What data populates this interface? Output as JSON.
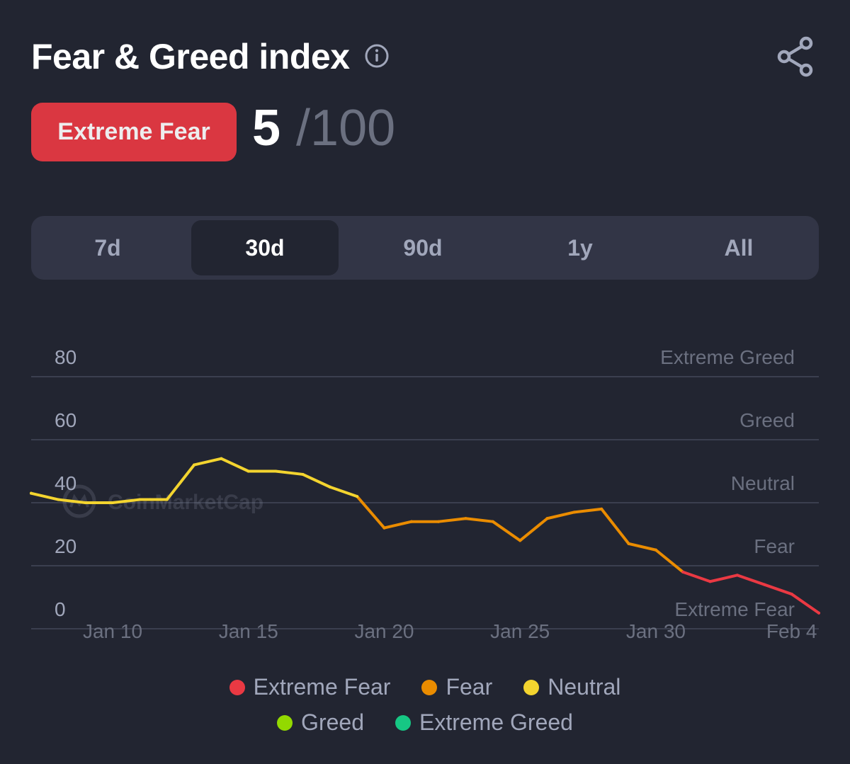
{
  "header": {
    "title": "Fear & Greed index",
    "info_icon": "info-icon",
    "share_icon": "share-icon"
  },
  "status": {
    "label": "Extreme Fear",
    "value": "5",
    "max": "/100",
    "color": "#ea3943"
  },
  "tabs": [
    {
      "label": "7d",
      "active": false
    },
    {
      "label": "30d",
      "active": true
    },
    {
      "label": "90d",
      "active": false
    },
    {
      "label": "1y",
      "active": false
    },
    {
      "label": "All",
      "active": false
    }
  ],
  "watermark": "CoinMarketCap",
  "chart_data": {
    "type": "line",
    "title": "",
    "xlabel": "",
    "ylabel": "",
    "ylim": [
      0,
      80
    ],
    "xlim": [
      "2026-01-07",
      "2026-02-05"
    ],
    "grid": true,
    "y_ticks": [
      "80",
      "60",
      "40",
      "20",
      "0"
    ],
    "zone_labels": [
      {
        "label": "Extreme Greed",
        "at": 80
      },
      {
        "label": "Greed",
        "at": 60
      },
      {
        "label": "Neutral",
        "at": 40
      },
      {
        "label": "Fear",
        "at": 20
      },
      {
        "label": "Extreme Fear",
        "at": 0
      }
    ],
    "x_ticks": [
      {
        "label": "Jan 10",
        "date": "2026-01-10"
      },
      {
        "label": "Jan 15",
        "date": "2026-01-15"
      },
      {
        "label": "Jan 20",
        "date": "2026-01-20"
      },
      {
        "label": "Jan 25",
        "date": "2026-01-25"
      },
      {
        "label": "Jan 30",
        "date": "2026-01-30"
      },
      {
        "label": "Feb 4",
        "date": "2026-02-04"
      }
    ],
    "series": [
      {
        "x": [
          "2026-01-07",
          "2026-01-08",
          "2026-01-09",
          "2026-01-10",
          "2026-01-11",
          "2026-01-12",
          "2026-01-13",
          "2026-01-14",
          "2026-01-15",
          "2026-01-16",
          "2026-01-17",
          "2026-01-18",
          "2026-01-19",
          "2026-01-20",
          "2026-01-21",
          "2026-01-22",
          "2026-01-23",
          "2026-01-24",
          "2026-01-25",
          "2026-01-26",
          "2026-01-27",
          "2026-01-28",
          "2026-01-29",
          "2026-01-30",
          "2026-01-31",
          "2026-02-01",
          "2026-02-02",
          "2026-02-03",
          "2026-02-04",
          "2026-02-05"
        ],
        "values": [
          43,
          41,
          40,
          40,
          41,
          41,
          52,
          54,
          50,
          50,
          49,
          45,
          42,
          32,
          34,
          34,
          35,
          34,
          28,
          35,
          37,
          38,
          27,
          25,
          18,
          15,
          17,
          14,
          11,
          5
        ]
      }
    ],
    "color_zones": [
      {
        "name": "Extreme Fear",
        "min": 0,
        "max": 20,
        "color": "#ea3943"
      },
      {
        "name": "Fear",
        "min": 20,
        "max": 40,
        "color": "#ea8c00"
      },
      {
        "name": "Neutral",
        "min": 40,
        "max": 60,
        "color": "#f3d42f"
      },
      {
        "name": "Greed",
        "min": 60,
        "max": 80,
        "color": "#93d900"
      },
      {
        "name": "Extreme Greed",
        "min": 80,
        "max": 100,
        "color": "#16c784"
      }
    ],
    "legend": [
      {
        "label": "Extreme Fear",
        "color": "#ea3943"
      },
      {
        "label": "Fear",
        "color": "#ea8c00"
      },
      {
        "label": "Neutral",
        "color": "#f3d42f"
      },
      {
        "label": "Greed",
        "color": "#93d900"
      },
      {
        "label": "Extreme Greed",
        "color": "#16c784"
      }
    ],
    "legend_position": "bottom-center"
  }
}
